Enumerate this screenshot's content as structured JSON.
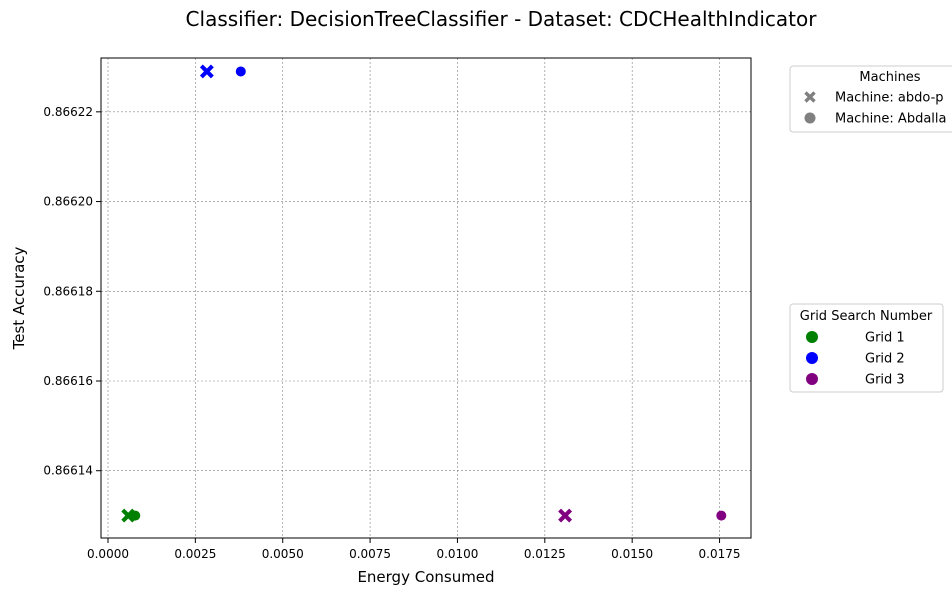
{
  "chart_data": {
    "type": "scatter",
    "title": "Classifier: DecisionTreeClassifier - Dataset: CDCHealthIndicator",
    "xlabel": "Energy Consumed",
    "ylabel": "Test Accuracy",
    "xlim": [
      -0.0002,
      0.0184
    ],
    "ylim": [
      0.866125,
      0.866232
    ],
    "xticks": [
      0.0,
      0.0025,
      0.005,
      0.0075,
      0.01,
      0.0125,
      0.015,
      0.0175
    ],
    "xtick_labels": [
      "0.0000",
      "0.0025",
      "0.0050",
      "0.0075",
      "0.0100",
      "0.0125",
      "0.0150",
      "0.0175"
    ],
    "yticks": [
      0.86614,
      0.86616,
      0.86618,
      0.8662,
      0.86622
    ],
    "ytick_labels": [
      "0.86614",
      "0.86616",
      "0.86618",
      "0.86620",
      "0.86622"
    ],
    "grid": true,
    "points": [
      {
        "x": 0.00058,
        "y": 0.86613,
        "grid": "Grid 1",
        "machine": "abdo-p"
      },
      {
        "x": 0.00078,
        "y": 0.86613,
        "grid": "Grid 1",
        "machine": "Abdalla"
      },
      {
        "x": 0.00283,
        "y": 0.866229,
        "grid": "Grid 2",
        "machine": "abdo-p"
      },
      {
        "x": 0.0038,
        "y": 0.866229,
        "grid": "Grid 2",
        "machine": "Abdalla"
      },
      {
        "x": 0.01308,
        "y": 0.86613,
        "grid": "Grid 3",
        "machine": "abdo-p"
      },
      {
        "x": 0.01755,
        "y": 0.86613,
        "grid": "Grid 3",
        "machine": "Abdalla"
      }
    ],
    "legend_machines": {
      "title": "Machines",
      "placement": "outside-top-right",
      "entries": [
        {
          "id": "abdo-p",
          "label": "Machine: abdo-p",
          "marker": "x"
        },
        {
          "id": "Abdalla",
          "label": "Machine: Abdalla",
          "marker": "circle"
        }
      ]
    },
    "legend_grids": {
      "title": "Grid Search Number",
      "placement": "outside-right",
      "entries": [
        {
          "id": "Grid 1",
          "label": "Grid 1",
          "color": "#008000"
        },
        {
          "id": "Grid 2",
          "label": "Grid 2",
          "color": "#0000ff"
        },
        {
          "id": "Grid 3",
          "label": "Grid 3",
          "color": "#800080"
        }
      ]
    },
    "legend_marker_color": "#808080"
  }
}
